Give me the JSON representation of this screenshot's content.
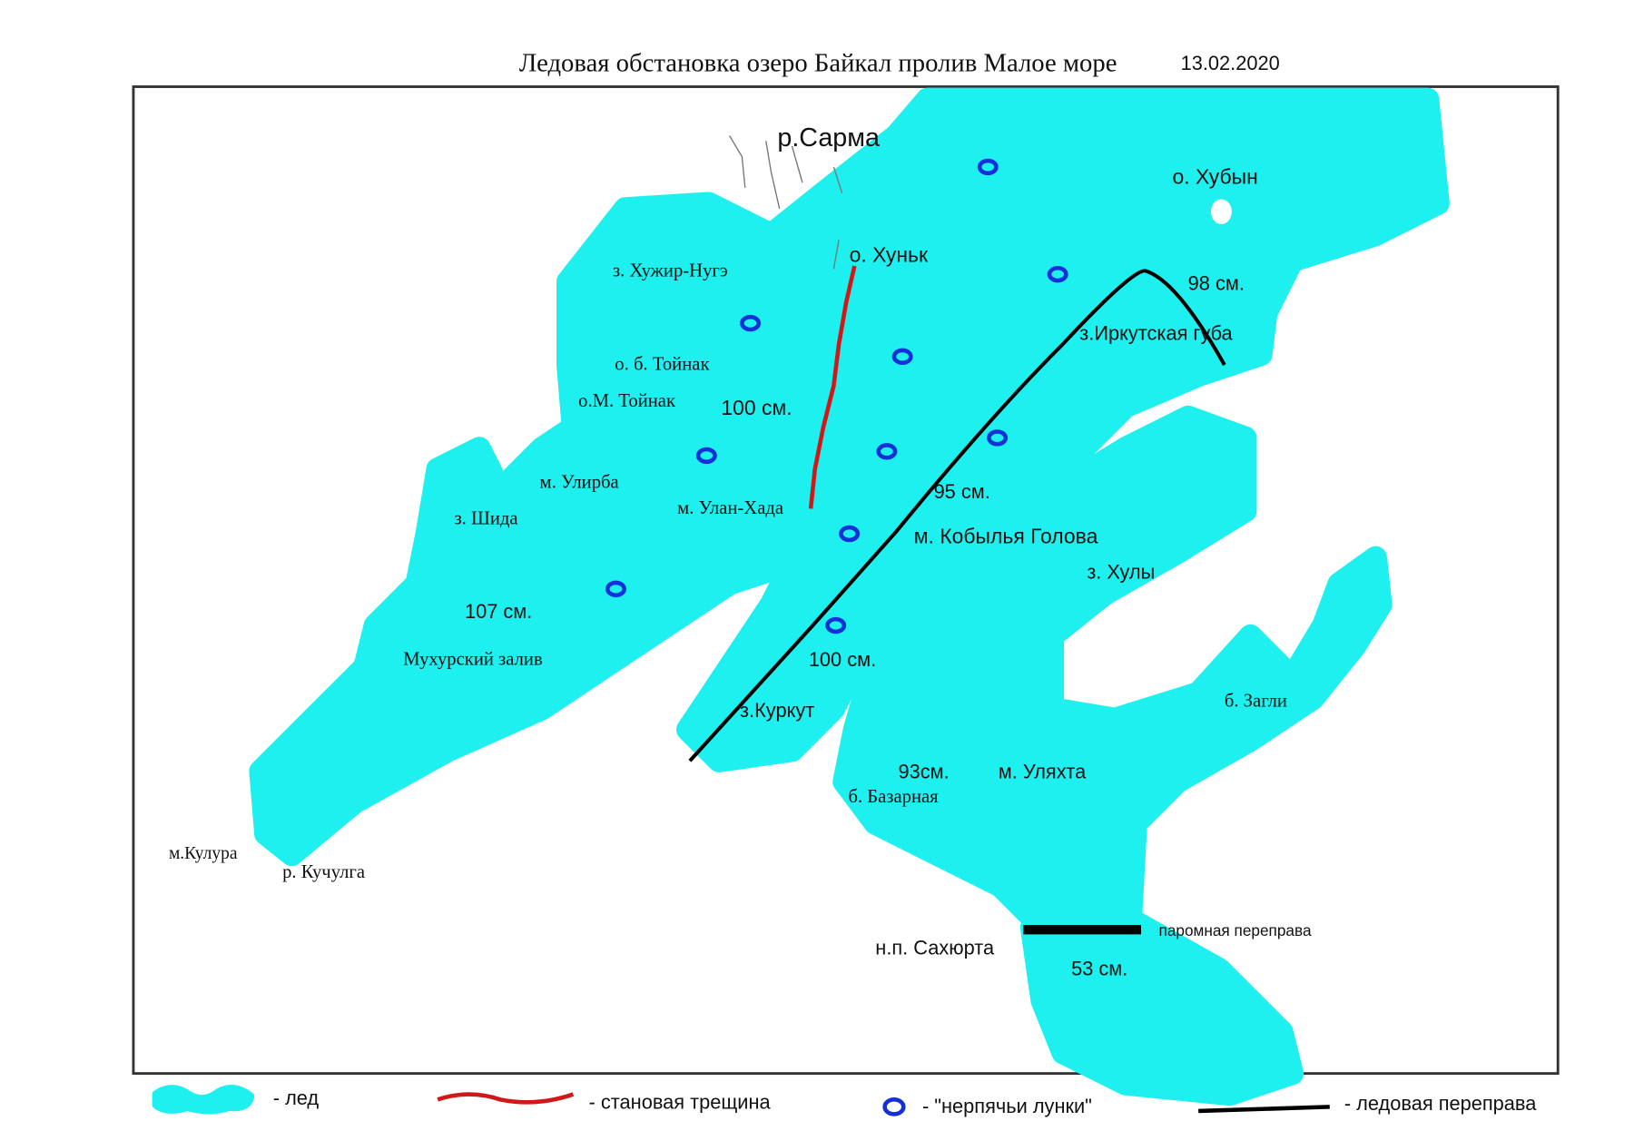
{
  "header": {
    "title": "Ледовая обстановка озеро Байкал пролив Малое море",
    "date": "13.02.2020"
  },
  "map": {
    "labels": [
      "р.Сарма",
      "о. Хубын",
      "о. Хуньк",
      "з. Хужир-Нугэ",
      "98 см.",
      "з.Иркутская губа",
      "о. б. Тойнак",
      "о.М. Тойнак",
      "100 см.",
      "м. Улирба",
      "з. Шида",
      "м. Улан-Хада",
      "95 см.",
      "м. Кобылья Голова",
      "з. Хулы",
      "107 см.",
      "Мухурский залив",
      "100 см.",
      "з.Куркут",
      "б. Загли",
      "93см.",
      "м. Уляхта",
      "б. Базарная",
      "м.Кулура",
      "р. Кучулга",
      "паромная переправа",
      "н.п. Сахюрта",
      "53 см."
    ]
  },
  "legend": [
    {
      "label": "- лед"
    },
    {
      "label": "- становая трещина"
    },
    {
      "label": "- \"нерпячьи лунки\""
    },
    {
      "label": "- ледовая переправа"
    }
  ]
}
